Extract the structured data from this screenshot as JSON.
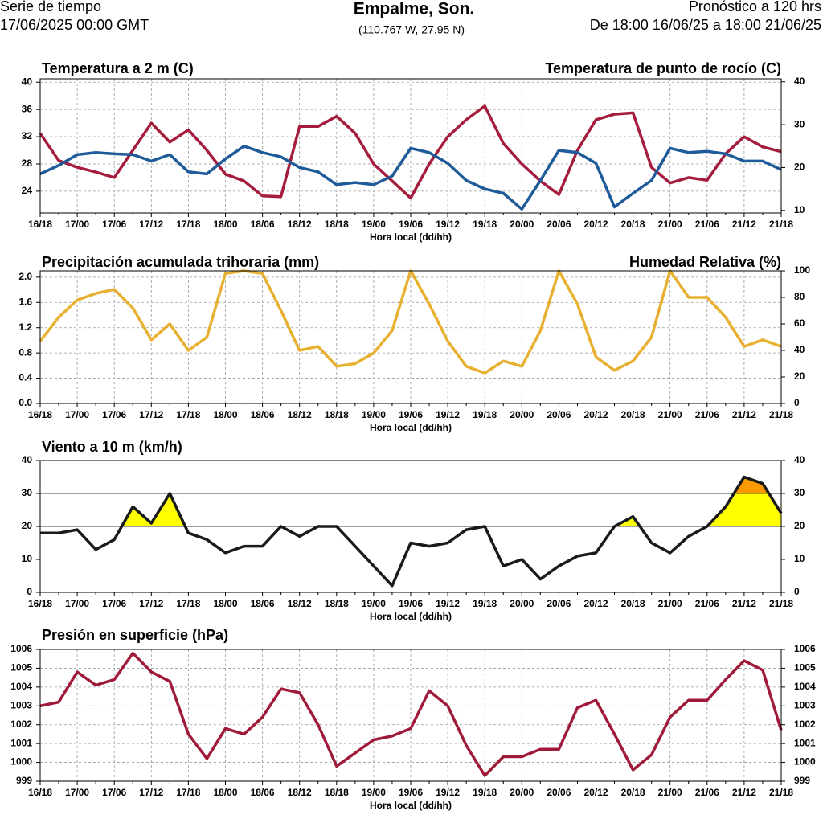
{
  "header": {
    "left": [
      "Serie de tiempo",
      "17/06/2025 00:00 GMT"
    ],
    "title": "Empalme, Son.",
    "subtitle": "(110.767 W, 27.95 N)",
    "right": [
      "Pronóstico a 120 hrs",
      "De 18:00 16/06/25 a 18:00 21/06/25"
    ]
  },
  "chart_data": [
    {
      "type": "line",
      "xlabel": "Hora local (dd/hh)",
      "grid": true,
      "categories": [
        "16/18",
        null,
        "17/00",
        null,
        "17/06",
        null,
        "17/12",
        null,
        "17/18",
        null,
        "18/00",
        null,
        "18/06",
        null,
        "18/12",
        null,
        "18/18",
        null,
        "19/00",
        null,
        "19/06",
        null,
        "19/12",
        null,
        "19/18",
        null,
        "20/00",
        null,
        "20/06",
        null,
        "20/12",
        null,
        "20/18",
        null,
        "21/00",
        null,
        "21/06",
        null,
        "21/12",
        null,
        "21/18"
      ],
      "ylim": [
        20.8,
        40.5
      ],
      "yticks": [
        24,
        28,
        32,
        36,
        40
      ],
      "ytick_color": "#a51c3c",
      "y2lim": [
        9.4,
        40.7
      ],
      "y2ticks": [
        10,
        20,
        30,
        40
      ],
      "y2tick_color": "#1f5a99",
      "series": [
        {
          "name": "Temperatura a 2 m (C)",
          "color": "#a51c3c",
          "axis": "y",
          "values": [
            32.5,
            28.5,
            27.5,
            26.8,
            26,
            30,
            34,
            31.2,
            33,
            30,
            26.5,
            25.5,
            23.3,
            23.2,
            33.5,
            33.5,
            35,
            32.5,
            28,
            25.5,
            23,
            28,
            32,
            34.5,
            36.5,
            31,
            28,
            25.5,
            23.5,
            30,
            34.5,
            35.3,
            35.5,
            27.5,
            25.2,
            26,
            25.6,
            29.5,
            32,
            30.5,
            29.8
          ]
        },
        {
          "name": "Temperatura de punto de rocío (C)",
          "color": "#1f5a99",
          "axis": "y2",
          "values": [
            18.5,
            20.5,
            23,
            23.5,
            23.2,
            23,
            21.5,
            23,
            19,
            18.5,
            22,
            25,
            23.5,
            22.5,
            20,
            19,
            16,
            16.5,
            16,
            18,
            24.5,
            23.5,
            21,
            17,
            15,
            14,
            10.3,
            17,
            24,
            23.5,
            21,
            10.8,
            14,
            17,
            24.5,
            23.5,
            23.8,
            23.2,
            21.5,
            21.5,
            19.5
          ]
        }
      ]
    },
    {
      "type": "line",
      "xlabel": "Hora local (dd/hh)",
      "grid": true,
      "categories": [
        "16/18",
        null,
        "17/00",
        null,
        "17/06",
        null,
        "17/12",
        null,
        "17/18",
        null,
        "18/00",
        null,
        "18/06",
        null,
        "18/12",
        null,
        "18/18",
        null,
        "19/00",
        null,
        "19/06",
        null,
        "19/12",
        null,
        "19/18",
        null,
        "20/00",
        null,
        "20/06",
        null,
        "20/12",
        null,
        "20/18",
        null,
        "21/00",
        null,
        "21/06",
        null,
        "21/12",
        null,
        "21/18"
      ],
      "ylim": [
        0,
        2.1
      ],
      "yticks": [
        {
          "value": 0,
          "label": "0.0"
        },
        0.4,
        0.8,
        1.2,
        1.6,
        {
          "value": 2,
          "label": "2.0"
        }
      ],
      "ytick_color": "#4a9a1a",
      "y2lim": [
        0,
        100
      ],
      "y2ticks": [
        0,
        20,
        40,
        60,
        80,
        100
      ],
      "y2tick_color": "#e8b030",
      "series": [
        {
          "name": "Precipitación acumulada trihoraria (mm)",
          "color": "#4a9a1a",
          "axis": "y",
          "kind": "bar",
          "values": [
            0,
            0,
            0,
            0,
            0,
            0,
            0,
            0,
            0,
            0,
            0,
            0,
            0,
            0,
            0,
            0,
            0,
            0,
            0,
            0,
            0,
            0,
            0,
            0,
            0,
            0,
            0,
            0,
            0,
            0,
            0,
            0,
            0,
            0,
            0,
            0,
            0,
            0,
            0,
            0,
            0
          ]
        },
        {
          "name": "Humedad Relativa (%)",
          "color": "#e8b030",
          "axis": "y2",
          "values": [
            47,
            65,
            78,
            83,
            86,
            72,
            48,
            60,
            40,
            50,
            98,
            100,
            98,
            70,
            40,
            43,
            28,
            30,
            38,
            55,
            100,
            75,
            47,
            28,
            23,
            32,
            28,
            55,
            100,
            75,
            35,
            25,
            32,
            50,
            100,
            80,
            80,
            65,
            43,
            48,
            43
          ]
        }
      ]
    },
    {
      "type": "line",
      "xlabel": "Hora local (dd/hh)",
      "grid": false,
      "categories": [
        "16/18",
        null,
        "17/00",
        null,
        "17/06",
        null,
        "17/12",
        null,
        "17/18",
        null,
        "18/00",
        null,
        "18/06",
        null,
        "18/12",
        null,
        "18/18",
        null,
        "19/00",
        null,
        "19/06",
        null,
        "19/12",
        null,
        "19/18",
        null,
        "20/00",
        null,
        "20/06",
        null,
        "20/12",
        null,
        "20/18",
        null,
        "21/00",
        null,
        "21/06",
        null,
        "21/12",
        null,
        "21/18"
      ],
      "ylim": [
        0,
        40
      ],
      "yticks": [
        0,
        10,
        20,
        30,
        40
      ],
      "ytick_color": "#000000",
      "y2lim": [
        0,
        40
      ],
      "y2ticks": [
        0,
        10,
        20,
        30,
        40
      ],
      "y2tick_color": "#000000",
      "bands": [
        {
          "from": 20,
          "to": 30,
          "color": "#ffff00"
        },
        {
          "from": 30,
          "to": 40,
          "color": "#ff9900"
        }
      ],
      "series": [
        {
          "name": "Viento a 10 m (km/h)",
          "color": "#1a1a1a",
          "axis": "y",
          "values": [
            18,
            18,
            19,
            13,
            16,
            26,
            21,
            30,
            18,
            16,
            12,
            14,
            14,
            20,
            17,
            20,
            20,
            14,
            8,
            2,
            15,
            14,
            15,
            19,
            20,
            8,
            10,
            4,
            8,
            11,
            12,
            20,
            23,
            15,
            12,
            17,
            20,
            26,
            35,
            33,
            24
          ]
        }
      ]
    },
    {
      "type": "line",
      "xlabel": "Hora local (dd/hh)",
      "grid": true,
      "categories": [
        "16/18",
        null,
        "17/00",
        null,
        "17/06",
        null,
        "17/12",
        null,
        "17/18",
        null,
        "18/00",
        null,
        "18/06",
        null,
        "18/12",
        null,
        "18/18",
        null,
        "19/00",
        null,
        "19/06",
        null,
        "19/12",
        null,
        "19/18",
        null,
        "20/00",
        null,
        "20/06",
        null,
        "20/12",
        null,
        "20/18",
        null,
        "21/00",
        null,
        "21/06",
        null,
        "21/12",
        null,
        "21/18"
      ],
      "ylim": [
        999,
        1006
      ],
      "yticks": [
        999,
        1000,
        1001,
        1002,
        1003,
        1004,
        1005,
        1006
      ],
      "ytick_color": "#a01a3a",
      "y2lim": [
        999,
        1006
      ],
      "y2ticks": [
        999,
        1000,
        1001,
        1002,
        1003,
        1004,
        1005,
        1006
      ],
      "y2tick_color": "#a01a3a",
      "series": [
        {
          "name": "Presión en superficie (hPa)",
          "color": "#a01a3a",
          "axis": "y",
          "values": [
            1003,
            1003.2,
            1004.8,
            1004.1,
            1004.4,
            1005.8,
            1004.8,
            1004.3,
            1001.5,
            1000.2,
            1001.8,
            1001.5,
            1002.4,
            1003.9,
            1003.7,
            1002,
            999.8,
            1000.5,
            1001.2,
            1001.4,
            1001.8,
            1003.8,
            1003,
            1000.9,
            999.3,
            1000.3,
            1000.3,
            1000.7,
            1000.7,
            1002.9,
            1003.3,
            1001.5,
            999.6,
            1000.4,
            1002.4,
            1003.3,
            1003.3,
            1004.4,
            1005.4,
            1004.9,
            1001.7
          ]
        }
      ]
    }
  ]
}
